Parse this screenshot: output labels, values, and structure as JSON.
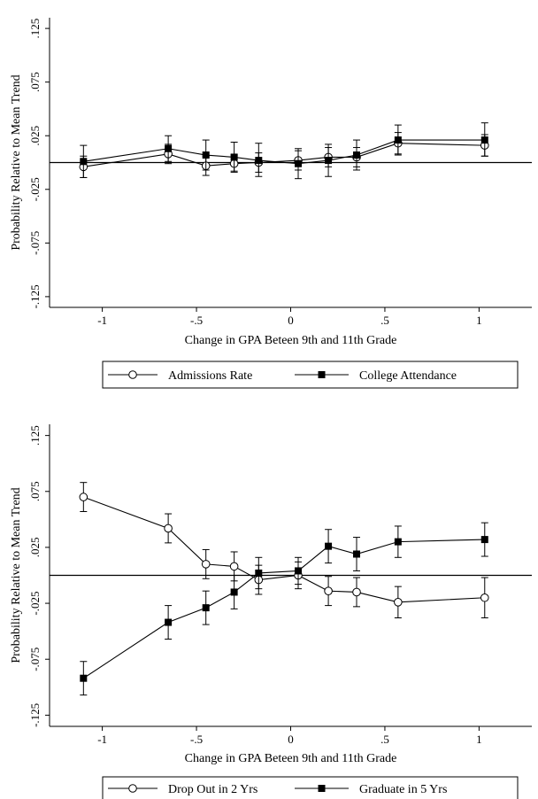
{
  "chart_data": [
    {
      "type": "line",
      "xlabel": "Change in GPA Beteen 9th and 11th Grade",
      "ylabel": "Probability Relative to Mean Trend",
      "xlim": [
        -1.28,
        1.28
      ],
      "ylim": [
        -0.135,
        0.135
      ],
      "xticks": [
        -1,
        -0.5,
        0,
        0.5,
        1
      ],
      "xtick_labels": [
        "-1",
        "-.5",
        "0",
        ".5",
        "1"
      ],
      "yticks": [
        0.125,
        0.075,
        0.025,
        -0.025,
        -0.075,
        -0.125
      ],
      "ytick_labels": [
        ".125",
        ".075",
        ".025",
        "-.025",
        "-.075",
        "-.125"
      ],
      "reference_line_y": 0,
      "legend_position": "bottom",
      "series": [
        {
          "name": "Admissions Rate",
          "marker": "hollow-circle",
          "x": [
            -1.1,
            -0.65,
            -0.45,
            -0.3,
            -0.17,
            0.04,
            0.2,
            0.35,
            0.57,
            1.03
          ],
          "y": [
            -0.004,
            0.008,
            -0.003,
            -0.001,
            0.0,
            0.002,
            0.005,
            0.005,
            0.018,
            0.016
          ],
          "ci_low": [
            -0.014,
            -0.001,
            -0.012,
            -0.009,
            -0.009,
            -0.007,
            -0.004,
            -0.004,
            0.008,
            0.006
          ],
          "ci_high": [
            0.006,
            0.017,
            0.006,
            0.007,
            0.009,
            0.011,
            0.014,
            0.014,
            0.028,
            0.026
          ]
        },
        {
          "name": "College Attendance",
          "marker": "filled-square",
          "x": [
            -1.1,
            -0.65,
            -0.45,
            -0.3,
            -0.17,
            0.04,
            0.2,
            0.35,
            0.57,
            1.03
          ],
          "y": [
            0.001,
            0.013,
            0.007,
            0.005,
            0.002,
            -0.001,
            0.002,
            0.007,
            0.021,
            0.021
          ],
          "ci_low": [
            -0.014,
            0.001,
            -0.007,
            -0.008,
            -0.013,
            -0.015,
            -0.013,
            -0.007,
            0.007,
            0.006
          ],
          "ci_high": [
            0.016,
            0.025,
            0.021,
            0.019,
            0.018,
            0.013,
            0.017,
            0.021,
            0.035,
            0.037
          ]
        }
      ]
    },
    {
      "type": "line",
      "xlabel": "Change in GPA Beteen 9th and 11th Grade",
      "ylabel": "Probability Relative to Mean Trend",
      "xlim": [
        -1.28,
        1.28
      ],
      "ylim": [
        -0.135,
        0.135
      ],
      "xticks": [
        -1,
        -0.5,
        0,
        0.5,
        1
      ],
      "xtick_labels": [
        "-1",
        "-.5",
        "0",
        ".5",
        "1"
      ],
      "yticks": [
        0.125,
        0.075,
        0.025,
        -0.025,
        -0.075,
        -0.125
      ],
      "ytick_labels": [
        ".125",
        ".075",
        ".025",
        "-.025",
        "-.075",
        "-.125"
      ],
      "reference_line_y": 0,
      "legend_position": "bottom",
      "series": [
        {
          "name": "Drop Out in 2 Yrs",
          "marker": "hollow-circle",
          "x": [
            -1.1,
            -0.65,
            -0.45,
            -0.3,
            -0.17,
            0.04,
            0.2,
            0.35,
            0.57,
            1.03
          ],
          "y": [
            0.07,
            0.042,
            0.01,
            0.008,
            -0.004,
            0.0,
            -0.014,
            -0.015,
            -0.024,
            -0.02
          ],
          "ci_low": [
            0.057,
            0.029,
            -0.003,
            -0.005,
            -0.017,
            -0.012,
            -0.027,
            -0.028,
            -0.038,
            -0.038
          ],
          "ci_high": [
            0.083,
            0.055,
            0.023,
            0.021,
            0.009,
            0.012,
            -0.001,
            -0.002,
            -0.01,
            -0.002
          ]
        },
        {
          "name": "Graduate in 5 Yrs",
          "marker": "filled-square",
          "x": [
            -1.1,
            -0.65,
            -0.45,
            -0.3,
            -0.17,
            0.04,
            0.2,
            0.35,
            0.57,
            1.03
          ],
          "y": [
            -0.092,
            -0.042,
            -0.029,
            -0.015,
            0.002,
            0.004,
            0.026,
            0.019,
            0.03,
            0.032
          ],
          "ci_low": [
            -0.107,
            -0.057,
            -0.044,
            -0.03,
            -0.012,
            -0.008,
            0.011,
            0.004,
            0.016,
            0.017
          ],
          "ci_high": [
            -0.077,
            -0.027,
            -0.014,
            0.0,
            0.016,
            0.016,
            0.041,
            0.034,
            0.044,
            0.047
          ]
        }
      ]
    }
  ]
}
